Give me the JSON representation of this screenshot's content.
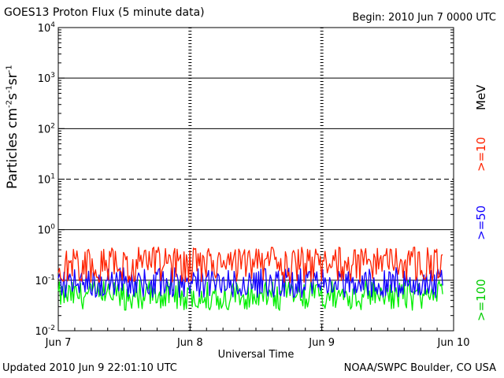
{
  "header": {
    "title": "GOES13 Proton Flux (5 minute data)",
    "begin": "Begin: 2010 Jun 7 0000 UTC"
  },
  "footer": {
    "updated": "Updated 2010 Jun  9 22:01:10 UTC",
    "credit": "NOAA/SWPC Boulder, CO USA"
  },
  "colors": {
    "ge10": "#ff2200",
    "ge50": "#1100ff",
    "ge100": "#00ee00",
    "axis": "#000000",
    "background": "#ffffff"
  },
  "chart_data": {
    "type": "line",
    "title": "GOES13 Proton Flux (5 minute data)",
    "xlabel": "Universal Time",
    "ylabel": "Particles cm⁻²s⁻¹sr⁻¹",
    "yscale": "log",
    "ylim": [
      0.01,
      10000
    ],
    "xlim_days": [
      0,
      3
    ],
    "x_ticks": [
      "Jun 7",
      "Jun 8",
      "Jun 9",
      "Jun 10"
    ],
    "y_ticks": [
      {
        "base": "10",
        "exp": "4"
      },
      {
        "base": "10",
        "exp": "3"
      },
      {
        "base": "10",
        "exp": "2"
      },
      {
        "base": "10",
        "exp": "1"
      },
      {
        "base": "10",
        "exp": "0"
      },
      {
        "base": "10",
        "exp": "-1"
      },
      {
        "base": "10",
        "exp": "-2"
      }
    ],
    "unit_label": "MeV",
    "grid": "solid at 10^3, 10^2, 10^0, 10^-1; dashed at 10^1; dashed day separators",
    "series": [
      {
        "name": ">=10",
        "color": "#ff2200",
        "typical_value": 0.2,
        "min": 0.09,
        "max": 0.45
      },
      {
        "name": ">=50",
        "color": "#1100ff",
        "typical_value": 0.085,
        "min": 0.045,
        "max": 0.18
      },
      {
        "name": ">=100",
        "color": "#00ee00",
        "typical_value": 0.05,
        "min": 0.025,
        "max": 0.1
      }
    ],
    "data_end": "Jun 9 22:00"
  }
}
